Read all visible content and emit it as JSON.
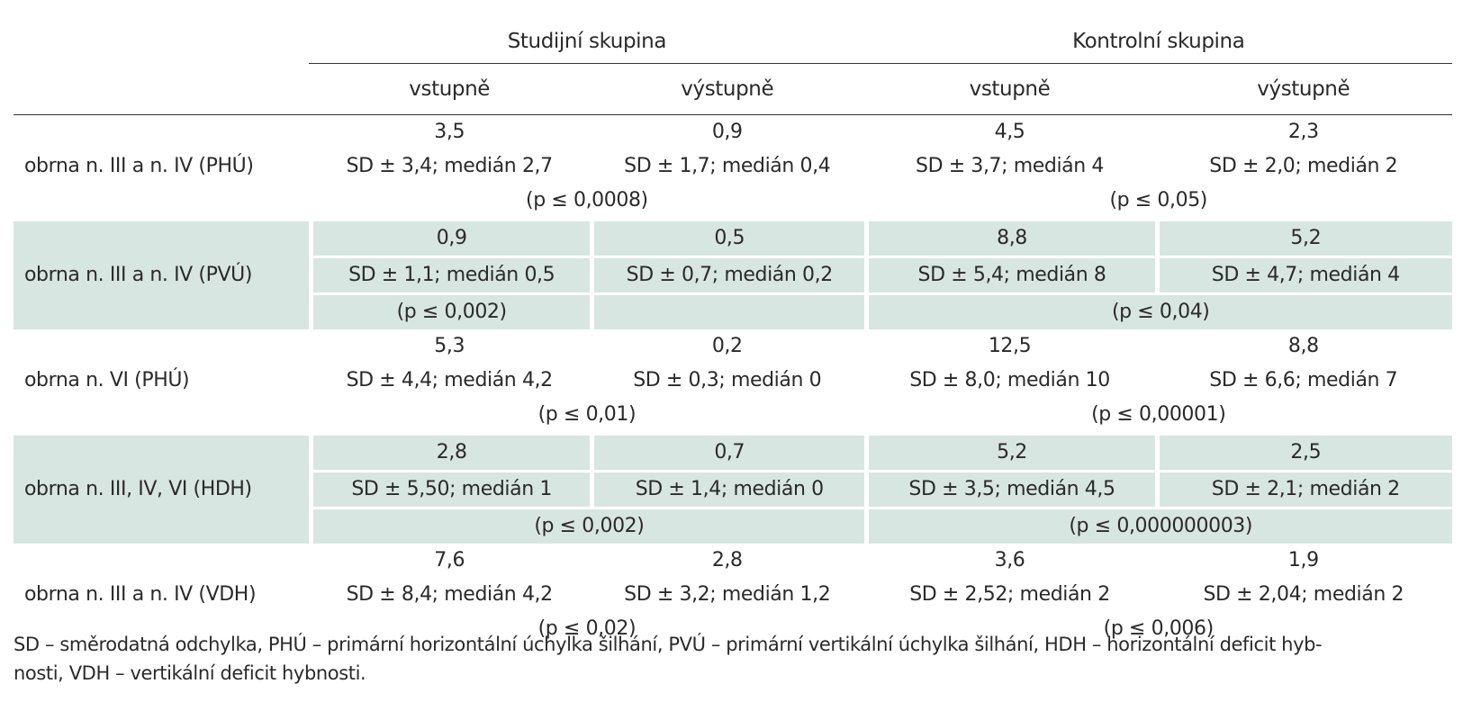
{
  "header": {
    "group_study": "Studijní skupina",
    "group_control": "Kontrolní skupina",
    "col_in": "vstupně",
    "col_out": "výstupně"
  },
  "rows": [
    {
      "label": "obrna n. III a n. IV (PHÚ)",
      "study_in_mean": "3,5",
      "study_in_sd": "SD ± 3,4; medián 2,7",
      "study_out_mean": "0,9",
      "study_out_sd": "SD ± 1,7; medián 0,4",
      "study_p": "(p ≤ 0,0008)",
      "ctrl_in_mean": "4,5",
      "ctrl_in_sd": "SD ± 3,7; medián 4",
      "ctrl_out_mean": "2,3",
      "ctrl_out_sd": "SD ± 2,0; medián 2",
      "ctrl_p": "(p ≤ 0,05)"
    },
    {
      "label": "obrna n. III a n. IV (PVÚ)",
      "study_in_mean": "0,9",
      "study_in_sd": "SD ± 1,1; medián 0,5",
      "study_out_mean": "0,5",
      "study_out_sd": "SD ± 0,7; medián 0,2",
      "study_p": "(p ≤ 0,002)",
      "ctrl_in_mean": "8,8",
      "ctrl_in_sd": "SD ± 5,4; medián 8",
      "ctrl_out_mean": "5,2",
      "ctrl_out_sd": "SD ± 4,7; medián 4",
      "ctrl_p": "(p ≤ 0,04)"
    },
    {
      "label": "obrna n. VI (PHÚ)",
      "study_in_mean": "5,3",
      "study_in_sd": "SD ± 4,4; medián 4,2",
      "study_out_mean": "0,2",
      "study_out_sd": "SD ± 0,3; medián 0",
      "study_p": "(p ≤ 0,01)",
      "ctrl_in_mean": "12,5",
      "ctrl_in_sd": "SD ± 8,0; medián 10",
      "ctrl_out_mean": "8,8",
      "ctrl_out_sd": "SD ± 6,6; medián 7",
      "ctrl_p": "(p ≤ 0,00001)"
    },
    {
      "label": "obrna n. III, IV, VI (HDH)",
      "study_in_mean": "2,8",
      "study_in_sd": "SD ± 5,50; medián 1",
      "study_out_mean": "0,7",
      "study_out_sd": "SD ± 1,4; medián 0",
      "study_p": "(p ≤ 0,002)",
      "ctrl_in_mean": "5,2",
      "ctrl_in_sd": "SD ± 3,5; medián 4,5",
      "ctrl_out_mean": "2,5",
      "ctrl_out_sd": "SD ± 2,1; medián 2",
      "ctrl_p": "(p ≤ 0,000000003)"
    },
    {
      "label": "obrna n. III a n. IV (VDH)",
      "study_in_mean": "7,6",
      "study_in_sd": "SD ± 8,4; medián 4,2",
      "study_out_mean": "2,8",
      "study_out_sd": "SD ± 3,2; medián 1,2",
      "study_p": "(p ≤ 0,02)",
      "ctrl_in_mean": "3,6",
      "ctrl_in_sd": "SD ± 2,52; medián 2",
      "ctrl_out_mean": "1,9",
      "ctrl_out_sd": "SD ± 2,04; medián 2",
      "ctrl_p": "(p ≤ 0,006)"
    }
  ],
  "footnote": {
    "line1": "SD – směrodatná odchylka, PHÚ – primární horizontální úchylka šilhání, PVÚ – primární vertikální úchylka šilhání, HDH – horizontální deficit hyb-",
    "line2": "nosti, VDH – vertikální deficit hybnosti."
  },
  "colors": {
    "shade": "#d8e6e2",
    "text": "#2a2a2a",
    "rule": "#333333"
  }
}
